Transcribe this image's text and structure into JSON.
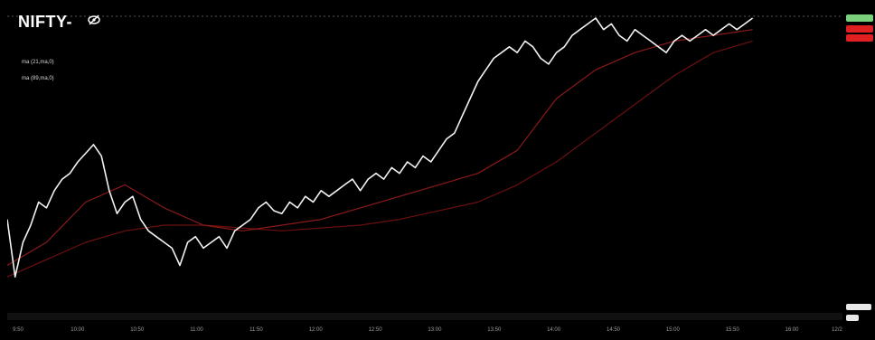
{
  "header": {
    "title": "NIFTY-",
    "visibility_icon": "eye-slash-icon"
  },
  "legend": [
    {
      "label": "ma (21,ma,0)"
    },
    {
      "label": "ma (89,ma,0)"
    }
  ],
  "colors": {
    "background": "#000000",
    "price_line": "#f2f2f2",
    "ma21": "#8b1a1a",
    "ma89": "#6b1010",
    "badge_green": "#7bd17b",
    "badge_red": "#e02020"
  },
  "chart_data": {
    "type": "line",
    "title": "NIFTY-",
    "x_ticks": [
      "9:50",
      "10:00",
      "10:50",
      "11:00",
      "11:50",
      "12:00",
      "12:50",
      "13:00",
      "13:50",
      "14:00",
      "14:50",
      "15:00",
      "15:50",
      "16:00"
    ],
    "x_label_extra": "12/2",
    "xlim": [
      0,
      100
    ],
    "ylim": [
      0,
      100
    ],
    "grid": false,
    "legend_position": "top-left",
    "series": [
      {
        "name": "",
        "x": [
          0,
          1,
          2,
          3,
          4,
          5,
          6,
          7,
          8,
          9,
          10,
          11,
          12,
          13,
          14,
          15,
          16,
          17,
          18,
          19,
          20,
          21,
          22,
          23,
          24,
          25,
          26,
          27,
          28,
          29,
          30,
          31,
          32,
          33,
          34,
          35,
          36,
          37,
          38,
          39,
          40,
          41,
          42,
          43,
          44,
          45,
          46,
          47,
          48,
          49,
          50,
          51,
          52,
          53,
          54,
          55,
          56,
          57,
          58,
          59,
          60,
          61,
          62,
          63,
          64,
          65,
          66,
          67,
          68,
          69,
          70,
          71,
          72,
          73,
          74,
          75,
          76,
          77,
          78,
          79,
          80,
          81,
          82,
          83,
          84,
          85,
          86,
          87,
          88,
          89,
          90,
          91,
          92,
          93,
          94,
          95
        ],
        "y": [
          30,
          10,
          22,
          28,
          36,
          34,
          40,
          44,
          46,
          50,
          53,
          56,
          52,
          40,
          32,
          36,
          38,
          30,
          26,
          24,
          22,
          20,
          14,
          22,
          24,
          20,
          22,
          24,
          20,
          26,
          28,
          30,
          34,
          36,
          33,
          32,
          36,
          34,
          38,
          36,
          40,
          38,
          40,
          42,
          44,
          40,
          44,
          46,
          44,
          48,
          46,
          50,
          48,
          52,
          50,
          54,
          58,
          60,
          66,
          72,
          78,
          82,
          86,
          88,
          90,
          88,
          92,
          90,
          86,
          84,
          88,
          90,
          94,
          96,
          98,
          100,
          96,
          98,
          94,
          92,
          96,
          94,
          92,
          90,
          88,
          92,
          94,
          92,
          94,
          96,
          94,
          96,
          98,
          96,
          98,
          100
        ],
        "style": "price"
      },
      {
        "name": "ma (21,ma,0)",
        "x": [
          0,
          5,
          10,
          15,
          20,
          25,
          30,
          35,
          40,
          45,
          50,
          55,
          60,
          65,
          70,
          75,
          80,
          85,
          90,
          95
        ],
        "y": [
          14,
          22,
          36,
          42,
          34,
          28,
          26,
          28,
          30,
          34,
          38,
          42,
          46,
          54,
          72,
          82,
          88,
          92,
          94,
          96
        ],
        "style": "ma21"
      },
      {
        "name": "ma (89,ma,0)",
        "x": [
          0,
          5,
          10,
          15,
          20,
          25,
          30,
          35,
          40,
          45,
          50,
          55,
          60,
          65,
          70,
          75,
          80,
          85,
          90,
          95
        ],
        "y": [
          10,
          16,
          22,
          26,
          28,
          28,
          27,
          26,
          27,
          28,
          30,
          33,
          36,
          42,
          50,
          60,
          70,
          80,
          88,
          92
        ],
        "style": "ma89"
      }
    ]
  }
}
